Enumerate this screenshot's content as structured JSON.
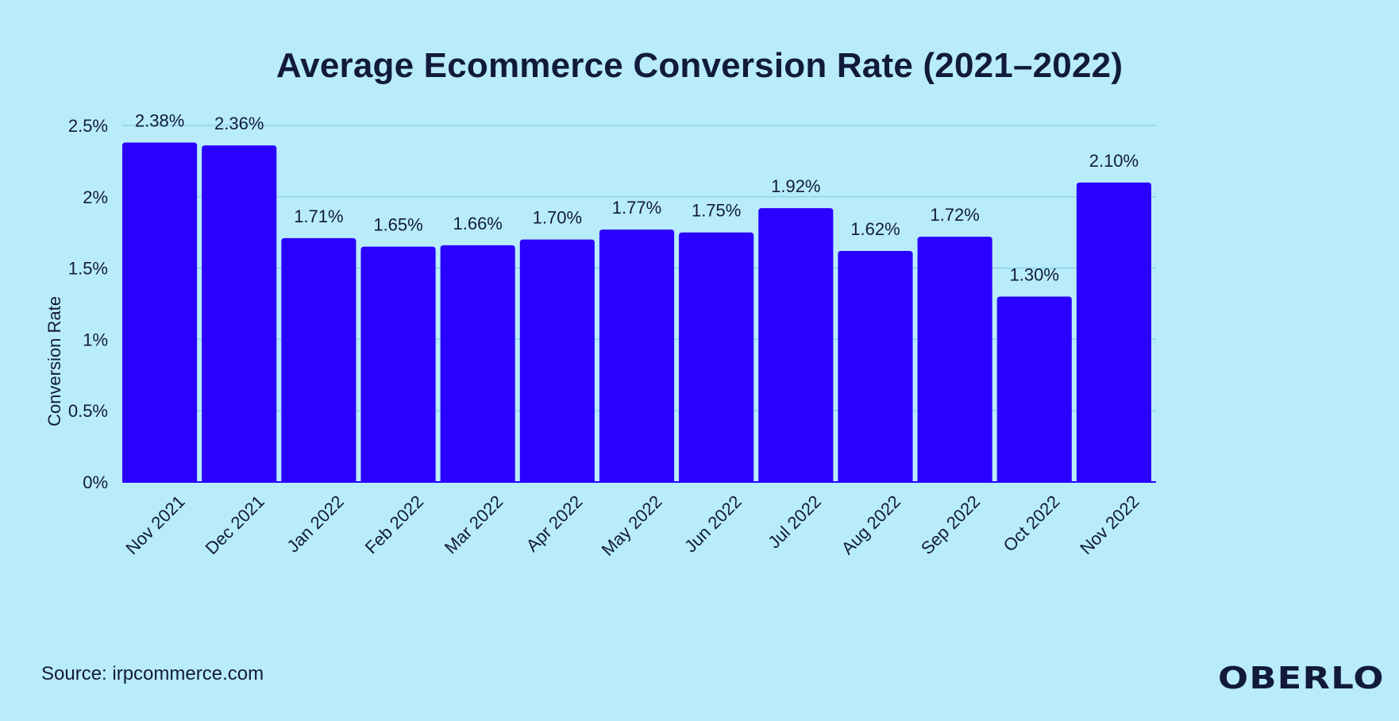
{
  "chart_data": {
    "type": "bar",
    "title": "Average Ecommerce Conversion Rate (2021–2022)",
    "xlabel": "",
    "ylabel": "Conversion Rate",
    "categories": [
      "Nov 2021",
      "Dec 2021",
      "Jan 2022",
      "Feb 2022",
      "Mar 2022",
      "Apr 2022",
      "May 2022",
      "Jun 2022",
      "Jul 2022",
      "Aug 2022",
      "Sep 2022",
      "Oct 2022",
      "Nov 2022"
    ],
    "values": [
      2.38,
      2.36,
      1.71,
      1.65,
      1.66,
      1.7,
      1.77,
      1.75,
      1.92,
      1.62,
      1.72,
      1.3,
      2.1
    ],
    "value_labels": [
      "2.38%",
      "2.36%",
      "1.71%",
      "1.65%",
      "1.66%",
      "1.70%",
      "1.77%",
      "1.75%",
      "1.92%",
      "1.62%",
      "1.72%",
      "1.30%",
      "2.10%"
    ],
    "ylim": [
      0,
      2.5
    ],
    "yticks": [
      0,
      0.5,
      1,
      1.5,
      2,
      2.5
    ],
    "ytick_labels": [
      "0%",
      "0.5%",
      "1%",
      "1.5%",
      "2%",
      "2.5%"
    ],
    "grid": true,
    "legend": "none"
  },
  "source": "Source: irpcommerce.com",
  "brand": "OBERLO",
  "colors": {
    "background": "#b8ecfb",
    "bar": "#2a00ff",
    "grid": "#8fd3ea",
    "text": "#121a3b"
  }
}
